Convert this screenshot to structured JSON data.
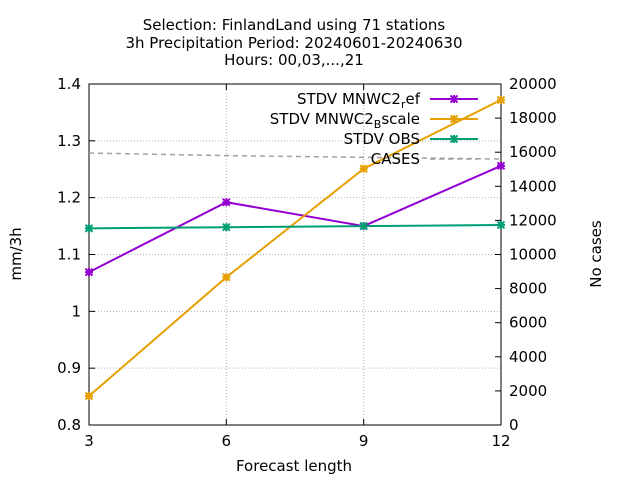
{
  "chart_data": {
    "type": "line",
    "title_lines": [
      "Selection: FinlandLand using    71 stations",
      "3h Precipitation   Period: 20240601-20240630",
      "Hours: 00,03,...,21"
    ],
    "xlabel": "Forecast length",
    "ylabel": "mm/3h",
    "y2label": "No cases",
    "x": [
      3,
      6,
      9,
      12
    ],
    "xlim": [
      3,
      12
    ],
    "ylim": [
      0.8,
      1.4
    ],
    "y2lim": [
      0,
      20000
    ],
    "xticks": [
      "3",
      "6",
      "9",
      "12"
    ],
    "yticks": [
      "0.8",
      "0.9",
      "1",
      "1.1",
      "1.2",
      "1.3",
      "1.4"
    ],
    "y2ticks": [
      "0",
      "2000",
      "4000",
      "6000",
      "8000",
      "10000",
      "12000",
      "14000",
      "16000",
      "18000",
      "20000"
    ],
    "grid": true,
    "legend_position": "top-right",
    "series": [
      {
        "name": "STDV MNWC2_ref",
        "legend_base": "STDV MNWC2",
        "legend_sub": "r",
        "legend_tail": "ef",
        "axis": "y1",
        "color": "#9400d3",
        "values": [
          1.069,
          1.192,
          1.15,
          1.256
        ]
      },
      {
        "name": "STDV MNWC2_Bscale",
        "legend_base": "STDV MNWC2",
        "legend_sub": "B",
        "legend_tail": "scale",
        "axis": "y1",
        "color": "#e69f00",
        "values": [
          0.851,
          1.06,
          1.251,
          1.372
        ]
      },
      {
        "name": "STDV OBS",
        "legend_base": "STDV OBS",
        "legend_sub": "",
        "legend_tail": "",
        "axis": "y1",
        "color": "#009e73",
        "values": [
          1.146,
          1.148,
          1.15,
          1.152
        ]
      },
      {
        "name": "CASES",
        "legend_base": "CASES",
        "legend_sub": "",
        "legend_tail": "",
        "axis": "y2",
        "color": "#a0a0a0",
        "dashed": true,
        "values": [
          15950,
          15800,
          15700,
          15600
        ]
      }
    ]
  }
}
